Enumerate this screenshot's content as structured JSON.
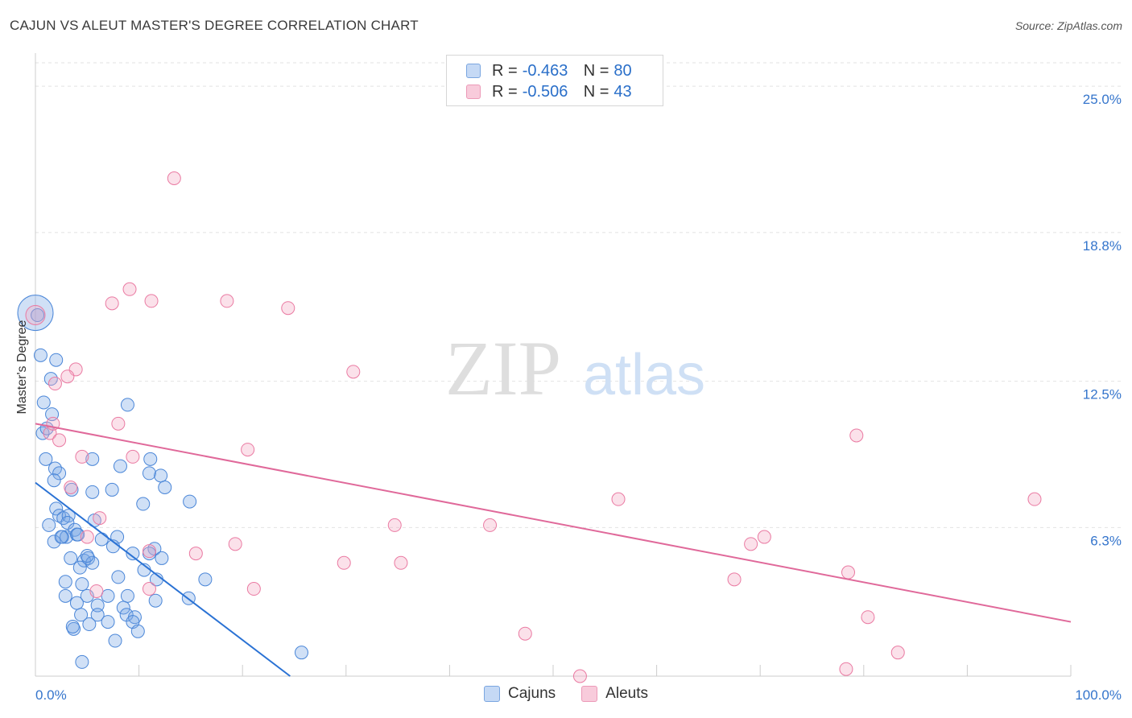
{
  "title": "CAJUN VS ALEUT MASTER'S DEGREE CORRELATION CHART",
  "source": "Source: ZipAtlas.com",
  "colors": {
    "blue": "#4a86d8",
    "blue_line": "#2a72d4",
    "pink": "#ea7aa2",
    "pink_line": "#e0699a",
    "axis_text": "#3575cc"
  },
  "legend_top": [
    {
      "r_label": "R =",
      "r_value": "-0.463",
      "n_label": "N =",
      "n_value": "80"
    },
    {
      "r_label": "R =",
      "r_value": "-0.506",
      "n_label": "N =",
      "n_value": "43"
    }
  ],
  "legend_bottom": [
    "Cajuns",
    "Aleuts"
  ],
  "watermark": {
    "zip": "ZIP",
    "atlas": "atlas"
  },
  "chart_data": {
    "type": "scatter",
    "title": "CAJUN VS ALEUT MASTER'S DEGREE CORRELATION CHART",
    "xlabel": "",
    "ylabel": "Master's Degree",
    "xlim": [
      0,
      100
    ],
    "ylim": [
      0,
      26.2
    ],
    "x_tick_labels": [
      "0.0%",
      "100.0%"
    ],
    "y_ticks": [
      6.3,
      12.5,
      18.8,
      25.0
    ],
    "y_tick_labels": [
      "6.3%",
      "12.5%",
      "18.8%",
      "25.0%"
    ],
    "series": [
      {
        "name": "Cajuns",
        "color": "#4a86d8",
        "trend": {
          "x": [
            0,
            24.6
          ],
          "y": [
            8.2,
            0.0
          ]
        },
        "points": [
          [
            0.0,
            15.4,
            22
          ],
          [
            0.2,
            15.3,
            8
          ],
          [
            0.5,
            13.6,
            8
          ],
          [
            2.0,
            13.4,
            8
          ],
          [
            1.5,
            12.6,
            8
          ],
          [
            0.8,
            11.6,
            8
          ],
          [
            1.6,
            11.1,
            8
          ],
          [
            0.7,
            10.3,
            8
          ],
          [
            1.1,
            10.5,
            8
          ],
          [
            1.0,
            9.2,
            8
          ],
          [
            1.9,
            8.8,
            8
          ],
          [
            2.3,
            8.6,
            8
          ],
          [
            1.8,
            8.3,
            8
          ],
          [
            3.5,
            7.9,
            8
          ],
          [
            5.5,
            7.8,
            8
          ],
          [
            2.0,
            7.1,
            8
          ],
          [
            2.3,
            6.8,
            8
          ],
          [
            2.7,
            6.7,
            8
          ],
          [
            3.2,
            6.8,
            8
          ],
          [
            3.1,
            6.5,
            8
          ],
          [
            1.3,
            6.4,
            8
          ],
          [
            2.6,
            5.9,
            8
          ],
          [
            3.0,
            5.9,
            8
          ],
          [
            3.8,
            6.2,
            8
          ],
          [
            4.0,
            6.0,
            8
          ],
          [
            1.8,
            5.7,
            8
          ],
          [
            2.5,
            5.9,
            8
          ],
          [
            4.1,
            6.0,
            8
          ],
          [
            5.7,
            6.6,
            8
          ],
          [
            6.4,
            5.8,
            8
          ],
          [
            7.9,
            5.9,
            8
          ],
          [
            5.5,
            9.2,
            8
          ],
          [
            8.2,
            8.9,
            8
          ],
          [
            7.4,
            7.9,
            8
          ],
          [
            11.0,
            8.6,
            8
          ],
          [
            12.1,
            8.5,
            8
          ],
          [
            11.1,
            9.2,
            8
          ],
          [
            12.5,
            8.0,
            8
          ],
          [
            10.4,
            7.3,
            8
          ],
          [
            14.9,
            7.4,
            8
          ],
          [
            8.9,
            11.5,
            8
          ],
          [
            3.4,
            5.0,
            8
          ],
          [
            4.7,
            4.9,
            8
          ],
          [
            5.1,
            5.0,
            8
          ],
          [
            4.3,
            4.6,
            8
          ],
          [
            5.5,
            4.8,
            8
          ],
          [
            5.0,
            5.1,
            8
          ],
          [
            7.5,
            5.5,
            8
          ],
          [
            9.4,
            5.2,
            8
          ],
          [
            11.5,
            5.4,
            8
          ],
          [
            11.0,
            5.2,
            8
          ],
          [
            12.2,
            5.0,
            8
          ],
          [
            10.5,
            4.5,
            8
          ],
          [
            8.0,
            4.2,
            8
          ],
          [
            11.7,
            4.1,
            8
          ],
          [
            2.9,
            4.0,
            8
          ],
          [
            4.5,
            3.9,
            8
          ],
          [
            16.4,
            4.1,
            8
          ],
          [
            2.9,
            3.4,
            8
          ],
          [
            5.0,
            3.4,
            8
          ],
          [
            7.0,
            3.4,
            8
          ],
          [
            8.9,
            3.4,
            8
          ],
          [
            4.0,
            3.1,
            8
          ],
          [
            6.0,
            3.0,
            8
          ],
          [
            8.5,
            2.9,
            8
          ],
          [
            11.6,
            3.2,
            8
          ],
          [
            14.8,
            3.3,
            8
          ],
          [
            4.4,
            2.6,
            8
          ],
          [
            6.0,
            2.6,
            8
          ],
          [
            8.8,
            2.6,
            8
          ],
          [
            9.6,
            2.5,
            8
          ],
          [
            3.7,
            2.0,
            8
          ],
          [
            5.2,
            2.2,
            8
          ],
          [
            7.0,
            2.3,
            8
          ],
          [
            9.4,
            2.3,
            8
          ],
          [
            9.9,
            1.9,
            8
          ],
          [
            3.6,
            2.1,
            8
          ],
          [
            7.7,
            1.5,
            8
          ],
          [
            25.7,
            1.0,
            8
          ],
          [
            4.5,
            0.6,
            8
          ]
        ]
      },
      {
        "name": "Aleuts",
        "color": "#ea7aa2",
        "trend": {
          "x": [
            0,
            100
          ],
          "y": [
            10.7,
            2.3
          ]
        },
        "points": [
          [
            0.0,
            15.3,
            12
          ],
          [
            13.4,
            21.1,
            8
          ],
          [
            9.1,
            16.4,
            8
          ],
          [
            7.4,
            15.8,
            8
          ],
          [
            11.2,
            15.9,
            8
          ],
          [
            18.5,
            15.9,
            8
          ],
          [
            24.4,
            15.6,
            8
          ],
          [
            3.9,
            13.0,
            8
          ],
          [
            3.1,
            12.7,
            8
          ],
          [
            1.9,
            12.4,
            8
          ],
          [
            30.7,
            12.9,
            8
          ],
          [
            1.4,
            10.3,
            8
          ],
          [
            2.3,
            10.0,
            8
          ],
          [
            8.0,
            10.7,
            8
          ],
          [
            20.5,
            9.6,
            8
          ],
          [
            4.5,
            9.3,
            8
          ],
          [
            9.4,
            9.3,
            8
          ],
          [
            79.3,
            10.2,
            8
          ],
          [
            3.4,
            8.0,
            8
          ],
          [
            56.3,
            7.5,
            8
          ],
          [
            96.5,
            7.5,
            8
          ],
          [
            6.2,
            6.7,
            8
          ],
          [
            34.7,
            6.4,
            8
          ],
          [
            43.9,
            6.4,
            8
          ],
          [
            70.4,
            5.9,
            8
          ],
          [
            69.1,
            5.6,
            8
          ],
          [
            5.0,
            5.9,
            8
          ],
          [
            19.3,
            5.6,
            8
          ],
          [
            11.0,
            5.3,
            8
          ],
          [
            15.5,
            5.2,
            8
          ],
          [
            29.8,
            4.8,
            8
          ],
          [
            35.3,
            4.8,
            8
          ],
          [
            67.5,
            4.1,
            8
          ],
          [
            78.5,
            4.4,
            8
          ],
          [
            5.9,
            3.6,
            8
          ],
          [
            11.0,
            3.7,
            8
          ],
          [
            21.1,
            3.7,
            8
          ],
          [
            80.4,
            2.5,
            8
          ],
          [
            47.3,
            1.8,
            8
          ],
          [
            83.3,
            1.0,
            8
          ],
          [
            78.3,
            0.3,
            8
          ],
          [
            52.6,
            0.0,
            8
          ],
          [
            1.7,
            10.7,
            8
          ]
        ]
      }
    ]
  }
}
